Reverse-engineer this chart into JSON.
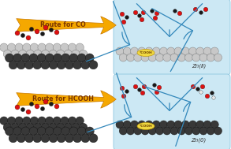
{
  "bg_color": "#ffffff",
  "panel_bg": "#cce8f4",
  "panel_edge": "#90c8e0",
  "arrow_color": "#f5a800",
  "arrow_edge": "#c87800",
  "arrow_text_color": "#7a3500",
  "top_label": "Route for CO",
  "bottom_label": "Route for HCOOH",
  "zn2_label": "Zn(Ⅱ)",
  "zn0_label": "Zn(0)",
  "intermediate_label": "*COOH",
  "intermediate_bg": "#f0d840",
  "intermediate_edge": "#b89000",
  "zn2_color": "#c8c8c8",
  "zn2_edge": "#787878",
  "zn0_color": "#383838",
  "zn0_edge": "#101010",
  "zn_dark_color": "#555555",
  "zn_dark_edge": "#202020",
  "red_atom": "#dd1111",
  "black_atom": "#181818",
  "white_atom": "#e8e8e8",
  "blue_arrow": "#3388bb",
  "label_color": "#333333"
}
